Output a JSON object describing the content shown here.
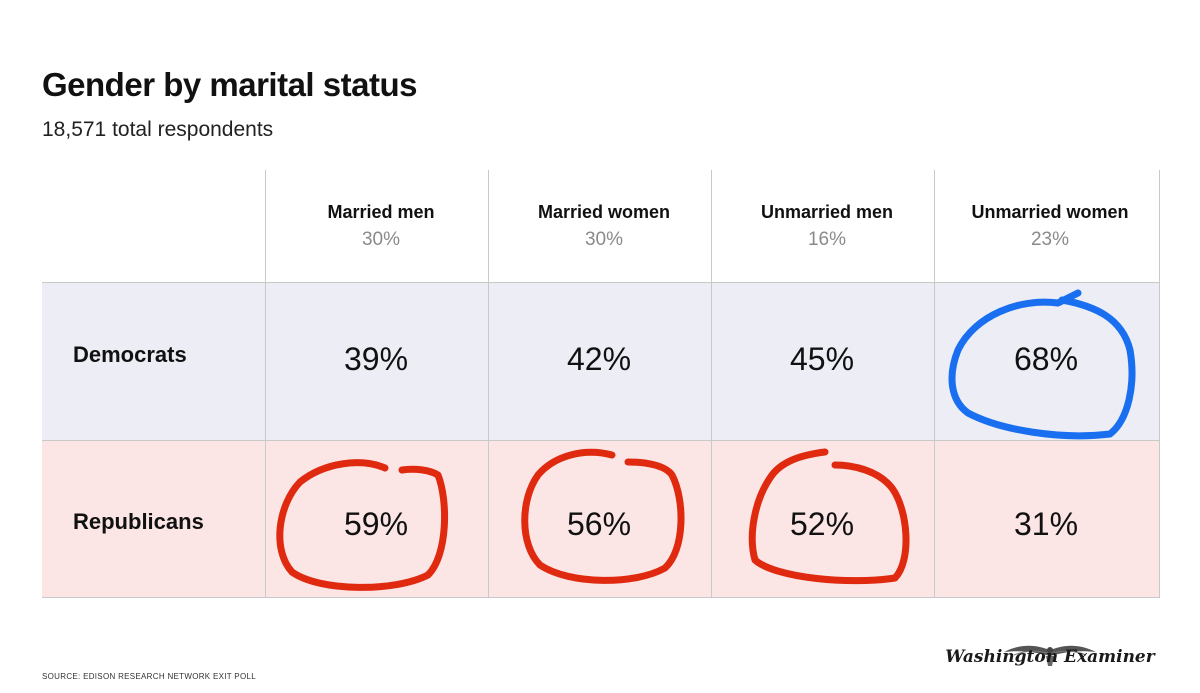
{
  "title": "Gender by marital status",
  "subtitle": "18,571 total respondents",
  "colors": {
    "democrats_row": "#ecedf5",
    "republicans_row": "#fbe5e5",
    "grid": "#c9c9c9",
    "blue_circle": "#1a6ef0",
    "red_circle": "#e02a10"
  },
  "chart_data": {
    "type": "table",
    "title": "Gender by marital status",
    "subtitle": "18,571 total respondents",
    "columns": [
      {
        "name": "Married men",
        "share": "30%"
      },
      {
        "name": "Married women",
        "share": "30%"
      },
      {
        "name": "Unmarried men",
        "share": "16%"
      },
      {
        "name": "Unmarried women",
        "share": "23%"
      }
    ],
    "rows": [
      {
        "label": "Democrats",
        "values": [
          "39%",
          "42%",
          "45%",
          "68%"
        ]
      },
      {
        "label": "Republicans",
        "values": [
          "59%",
          "56%",
          "52%",
          "31%"
        ]
      }
    ],
    "annotations": [
      {
        "row": "Democrats",
        "column": "Unmarried women",
        "mark": "blue hand-drawn circle"
      },
      {
        "row": "Republicans",
        "column": "Married men",
        "mark": "red hand-drawn circle"
      },
      {
        "row": "Republicans",
        "column": "Married women",
        "mark": "red hand-drawn circle"
      },
      {
        "row": "Republicans",
        "column": "Unmarried men",
        "mark": "red hand-drawn circle"
      }
    ]
  },
  "footer": {
    "source": "SOURCE: EDISON RESEARCH NETWORK EXIT POLL",
    "logo_text": "Washington Examiner",
    "logo_icon": "eagle-icon"
  }
}
